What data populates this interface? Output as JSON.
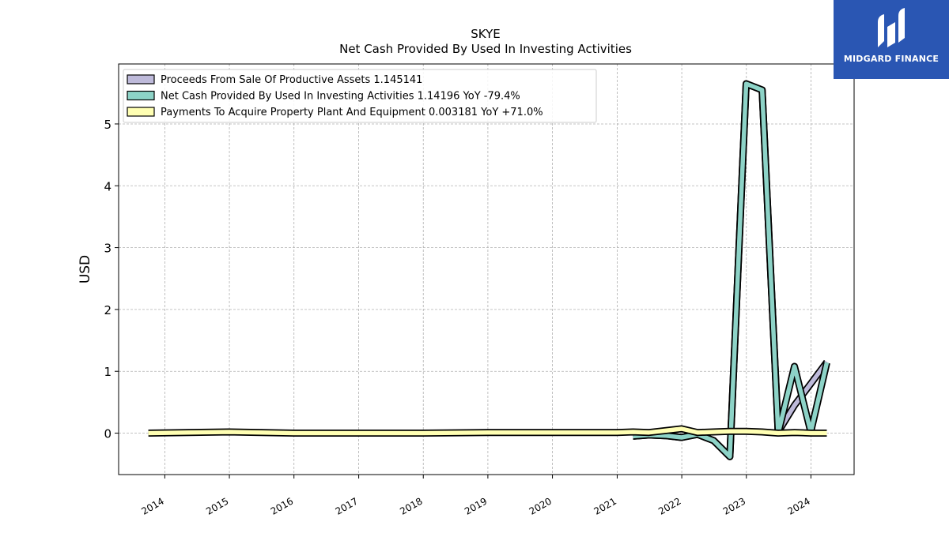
{
  "logo": {
    "text": "MIDGARD FINANCE"
  },
  "chart_data": {
    "type": "area",
    "title": "SKYE",
    "subtitle": "Net Cash Provided By Used In Investing Activities",
    "ylabel": "USD",
    "xlabel": "",
    "xlim": [
      "2013-04-15",
      "2024-09-01"
    ],
    "ylim": [
      -0.67,
      5.97
    ],
    "yticks": [
      0,
      1,
      2,
      3,
      4,
      5
    ],
    "xticks": [
      "2014",
      "2015",
      "2016",
      "2017",
      "2018",
      "2019",
      "2020",
      "2021",
      "2022",
      "2023",
      "2024"
    ],
    "grid": true,
    "legend_placement": "top-left",
    "legend": [
      "Proceeds From Sale Of Productive Assets  1.145141",
      "Net Cash Provided By Used In Investing Activities  1.14196 YoY -79.4%",
      "Payments To Acquire Property Plant And Equipment  0.003181 YoY +71.0%"
    ],
    "series": [
      {
        "name": "Proceeds From Sale Of Productive Assets",
        "color": "#bebada",
        "points": [
          [
            "2021-03-31",
            -0.05
          ],
          [
            "2021-06-30",
            -0.03
          ],
          [
            "2021-09-30",
            -0.04
          ],
          [
            "2021-12-31",
            -0.07
          ],
          [
            "2022-03-31",
            -0.02
          ],
          [
            "2022-06-30",
            -0.12
          ],
          [
            "2022-09-30",
            -0.38
          ],
          [
            "2022-12-31",
            5.65
          ],
          [
            "2023-03-31",
            5.55
          ],
          [
            "2023-06-30",
            0.02
          ],
          [
            "2023-09-30",
            0.45
          ],
          [
            "2023-12-31",
            0.8
          ],
          [
            "2024-03-31",
            1.15
          ]
        ]
      },
      {
        "name": "Net Cash Provided By Used In Investing Activities",
        "color": "#8dd3c7",
        "points": [
          [
            "2021-03-31",
            -0.05
          ],
          [
            "2021-06-30",
            -0.03
          ],
          [
            "2021-09-30",
            -0.04
          ],
          [
            "2021-12-31",
            -0.07
          ],
          [
            "2022-03-31",
            -0.02
          ],
          [
            "2022-06-30",
            -0.12
          ],
          [
            "2022-09-30",
            -0.38
          ],
          [
            "2022-12-31",
            5.65
          ],
          [
            "2023-03-31",
            5.55
          ],
          [
            "2023-06-30",
            0.0
          ],
          [
            "2023-09-30",
            1.08
          ],
          [
            "2023-12-31",
            0.02
          ],
          [
            "2024-03-31",
            1.14
          ]
        ]
      },
      {
        "name": "Payments To Acquire Property Plant And Equipment",
        "color": "#ffffb3",
        "points": [
          [
            "2013-09-30",
            0.0
          ],
          [
            "2014-12-31",
            0.02
          ],
          [
            "2015-12-31",
            0.0
          ],
          [
            "2016-12-31",
            0.0
          ],
          [
            "2017-12-31",
            0.0
          ],
          [
            "2018-12-31",
            0.01
          ],
          [
            "2019-12-31",
            0.01
          ],
          [
            "2020-12-31",
            0.01
          ],
          [
            "2021-03-31",
            0.02
          ],
          [
            "2021-06-30",
            0.01
          ],
          [
            "2021-09-30",
            0.04
          ],
          [
            "2021-12-31",
            0.07
          ],
          [
            "2022-03-31",
            0.01
          ],
          [
            "2022-06-30",
            0.02
          ],
          [
            "2022-09-30",
            0.03
          ],
          [
            "2022-12-31",
            0.03
          ],
          [
            "2023-03-31",
            0.02
          ],
          [
            "2023-06-30",
            0.0
          ],
          [
            "2023-09-30",
            0.01
          ],
          [
            "2023-12-31",
            0.0
          ],
          [
            "2024-03-31",
            0.0
          ]
        ]
      }
    ]
  }
}
